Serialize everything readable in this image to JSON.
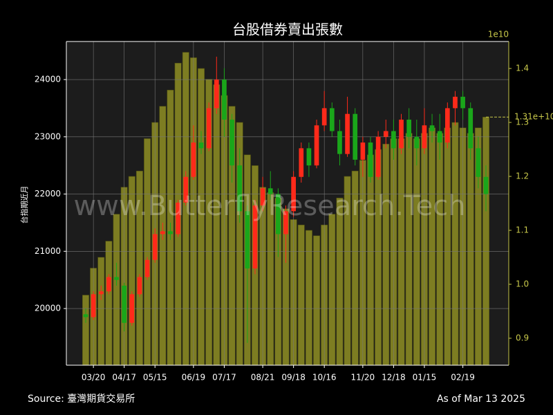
{
  "chart_data": {
    "type": "candlestick",
    "title": "台股借券賣出張數",
    "y_label": "台指期近月",
    "watermark": "www.ButterflyResearch.Tech",
    "source": "Source: 臺灣期貨交易所",
    "as_of": "As of Mar 13 2025",
    "categories": [
      null,
      "03/20",
      null,
      null,
      null,
      "04/17",
      null,
      null,
      null,
      "05/15",
      null,
      null,
      null,
      null,
      "06/19",
      null,
      null,
      null,
      "07/17",
      null,
      null,
      null,
      null,
      "08/21",
      null,
      null,
      null,
      "09/18",
      null,
      null,
      null,
      "10/16",
      null,
      null,
      null,
      null,
      "11/20",
      null,
      null,
      null,
      "12/18",
      null,
      null,
      null,
      "01/15",
      null,
      null,
      null,
      null,
      "02/19",
      null,
      null,
      null
    ],
    "open": [
      19900,
      19850,
      20250,
      20300,
      20550,
      20400,
      19750,
      20250,
      20550,
      20850,
      21300,
      21350,
      21300,
      21850,
      22300,
      22900,
      22800,
      23500,
      24000,
      23300,
      22500,
      21700,
      20700,
      21800,
      22100,
      22000,
      21300,
      21700,
      22300,
      22800,
      22500,
      23200,
      23500,
      23100,
      22700,
      23400,
      22600,
      22900,
      22300,
      23000,
      23100,
      22800,
      23300,
      23000,
      22800,
      23200,
      23100,
      22900,
      23500,
      23700,
      23500,
      22800,
      22300
    ],
    "high": [
      20000,
      20300,
      20400,
      20600,
      20800,
      20450,
      20300,
      20600,
      20900,
      21400,
      21500,
      21500,
      21900,
      22400,
      23200,
      23100,
      23600,
      24400,
      24200,
      23400,
      22800,
      21800,
      21900,
      22300,
      22400,
      22100,
      21800,
      22400,
      22900,
      22900,
      23300,
      23800,
      23600,
      23300,
      23700,
      23500,
      23000,
      23000,
      23100,
      23300,
      23300,
      23400,
      23500,
      23300,
      23500,
      23400,
      23400,
      23600,
      23800,
      23800,
      23600,
      23000,
      22500
    ],
    "low": [
      19750,
      19800,
      20150,
      20250,
      20400,
      19600,
      19700,
      20200,
      20500,
      20800,
      21200,
      21200,
      21250,
      21800,
      22250,
      22700,
      22750,
      23400,
      23000,
      22200,
      21500,
      19400,
      20600,
      21700,
      21900,
      20900,
      20800,
      21600,
      22200,
      22300,
      22450,
      23100,
      23000,
      22500,
      22650,
      22500,
      22300,
      22200,
      22250,
      22800,
      22600,
      22700,
      22800,
      22500,
      22700,
      22900,
      22600,
      22800,
      23200,
      23300,
      22600,
      22100,
      21700
    ],
    "close": [
      19850,
      20250,
      20300,
      20550,
      20500,
      19750,
      20250,
      20550,
      20850,
      21300,
      21350,
      21300,
      21850,
      22300,
      22900,
      22800,
      23500,
      24000,
      23300,
      22500,
      21700,
      20700,
      21800,
      22100,
      22000,
      21300,
      21700,
      22300,
      22800,
      22500,
      23200,
      23500,
      23100,
      22700,
      23400,
      22600,
      22900,
      22300,
      23000,
      23100,
      22800,
      23300,
      23000,
      22800,
      23200,
      23100,
      22900,
      23500,
      23700,
      23500,
      22800,
      22300,
      22000
    ],
    "up_color": "#ff2a1a",
    "down_color": "#1aa61a",
    "ylim": [
      19010,
      24665
    ],
    "yticks": [
      20000,
      21000,
      22000,
      23000,
      24000
    ],
    "volume": {
      "axis": "y2",
      "color": "#7d7d22",
      "values": [
        0.98,
        1.03,
        1.05,
        1.08,
        1.13,
        1.18,
        1.2,
        1.21,
        1.27,
        1.3,
        1.33,
        1.36,
        1.41,
        1.43,
        1.42,
        1.4,
        1.38,
        1.37,
        1.35,
        1.33,
        1.3,
        1.24,
        1.22,
        1.18,
        1.17,
        1.16,
        1.14,
        1.12,
        1.11,
        1.1,
        1.09,
        1.11,
        1.13,
        1.16,
        1.2,
        1.21,
        1.23,
        1.24,
        1.25,
        1.26,
        1.27,
        1.27,
        1.28,
        1.27,
        1.28,
        1.29,
        1.28,
        1.29,
        1.3,
        1.29,
        1.28,
        1.29,
        1.31
      ]
    },
    "y2lim": [
      0.85,
      1.45
    ],
    "y2ticks": [
      0.9,
      {
        "value": 1,
        "label": "1.0"
      },
      1.1,
      1.2,
      1.3,
      1.4
    ],
    "y2_offset": "1e10",
    "last_label": {
      "value": 1.31,
      "label": "1.31e+10"
    },
    "y2_color": "#c8c84a",
    "grid": true
  }
}
